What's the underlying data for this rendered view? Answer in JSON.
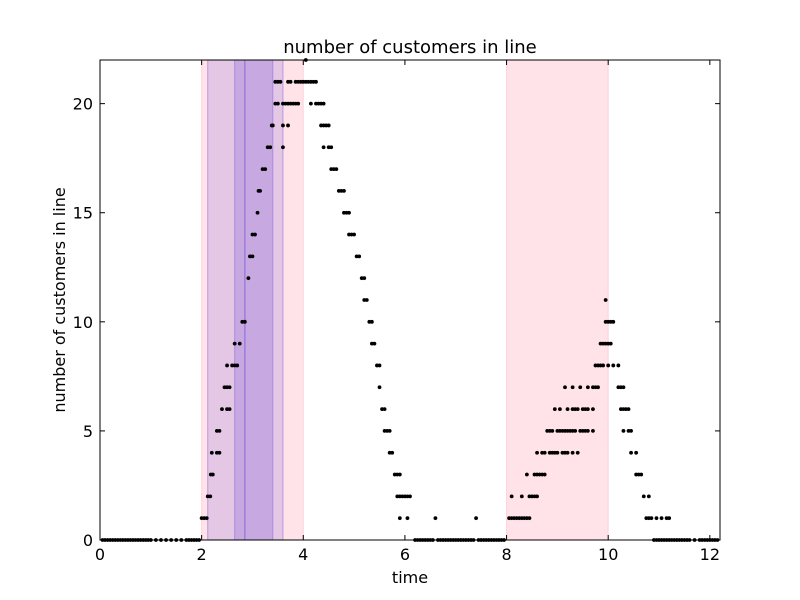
{
  "chart_data": {
    "type": "scatter",
    "title": "number of customers in line",
    "xlabel": "time",
    "ylabel": "number of customers in line",
    "xlim": [
      0,
      12.2
    ],
    "ylim": [
      0,
      22
    ],
    "xticks": [
      0,
      2,
      4,
      6,
      8,
      10,
      12
    ],
    "yticks": [
      0,
      5,
      10,
      15,
      20
    ],
    "grid": false,
    "legend": "none",
    "colors": {
      "points": "#000000",
      "band_pink": "#ffc0cb",
      "band_purple": "#9370db",
      "band_line": "#9370db"
    },
    "bands": [
      {
        "x0": 2.0,
        "x1": 4.0,
        "color": "pink"
      },
      {
        "x0": 8.0,
        "x1": 10.0,
        "color": "pink"
      },
      {
        "x0": 2.12,
        "x1": 3.6,
        "color": "purple",
        "opacity": 0.25
      },
      {
        "x0": 2.65,
        "x1": 3.4,
        "color": "purple",
        "opacity": 0.35
      }
    ],
    "vlines": [
      2.85
    ],
    "points": [
      [
        0.05,
        0
      ],
      [
        0.1,
        0
      ],
      [
        0.15,
        0
      ],
      [
        0.2,
        0
      ],
      [
        0.25,
        0
      ],
      [
        0.3,
        0
      ],
      [
        0.35,
        0
      ],
      [
        0.4,
        0
      ],
      [
        0.45,
        0
      ],
      [
        0.5,
        0
      ],
      [
        0.55,
        0
      ],
      [
        0.6,
        0
      ],
      [
        0.65,
        0
      ],
      [
        0.7,
        0
      ],
      [
        0.75,
        0
      ],
      [
        0.8,
        0
      ],
      [
        0.85,
        0
      ],
      [
        0.9,
        0
      ],
      [
        0.95,
        0
      ],
      [
        1.0,
        0
      ],
      [
        1.1,
        0
      ],
      [
        1.2,
        0
      ],
      [
        1.3,
        0
      ],
      [
        1.4,
        0
      ],
      [
        1.5,
        0
      ],
      [
        1.6,
        0
      ],
      [
        1.7,
        0
      ],
      [
        1.75,
        0
      ],
      [
        1.8,
        0
      ],
      [
        1.85,
        0
      ],
      [
        1.9,
        0
      ],
      [
        1.95,
        0
      ],
      [
        2.0,
        1
      ],
      [
        2.05,
        1
      ],
      [
        2.1,
        1
      ],
      [
        2.12,
        2
      ],
      [
        2.17,
        2
      ],
      [
        2.18,
        3
      ],
      [
        2.22,
        3
      ],
      [
        2.2,
        4
      ],
      [
        2.3,
        4
      ],
      [
        2.35,
        4
      ],
      [
        2.3,
        5
      ],
      [
        2.35,
        5
      ],
      [
        2.4,
        6
      ],
      [
        2.5,
        6
      ],
      [
        2.55,
        6
      ],
      [
        2.45,
        7
      ],
      [
        2.5,
        7
      ],
      [
        2.55,
        7
      ],
      [
        2.5,
        8
      ],
      [
        2.6,
        8
      ],
      [
        2.65,
        8
      ],
      [
        2.7,
        8
      ],
      [
        2.65,
        9
      ],
      [
        2.75,
        9
      ],
      [
        2.8,
        10
      ],
      [
        2.85,
        10
      ],
      [
        2.92,
        12
      ],
      [
        2.95,
        13
      ],
      [
        3.0,
        13
      ],
      [
        3.0,
        14
      ],
      [
        3.05,
        14
      ],
      [
        3.1,
        15
      ],
      [
        3.12,
        16
      ],
      [
        3.15,
        16
      ],
      [
        3.2,
        17
      ],
      [
        3.25,
        17
      ],
      [
        3.3,
        18
      ],
      [
        3.35,
        18
      ],
      [
        3.38,
        19
      ],
      [
        3.4,
        19
      ],
      [
        3.45,
        20
      ],
      [
        3.5,
        20
      ],
      [
        3.45,
        21
      ],
      [
        3.5,
        21
      ],
      [
        3.55,
        21
      ],
      [
        3.6,
        18
      ],
      [
        3.6,
        19
      ],
      [
        3.7,
        19
      ],
      [
        3.6,
        20
      ],
      [
        3.65,
        20
      ],
      [
        3.7,
        20
      ],
      [
        3.75,
        20
      ],
      [
        3.8,
        20
      ],
      [
        3.85,
        20
      ],
      [
        3.9,
        20
      ],
      [
        3.7,
        21
      ],
      [
        3.75,
        21
      ],
      [
        3.85,
        21
      ],
      [
        3.9,
        21
      ],
      [
        3.95,
        21
      ],
      [
        4.0,
        21
      ],
      [
        4.05,
        22
      ],
      [
        4.05,
        21
      ],
      [
        4.1,
        21
      ],
      [
        4.15,
        21
      ],
      [
        4.2,
        21
      ],
      [
        4.25,
        21
      ],
      [
        4.15,
        20
      ],
      [
        4.25,
        20
      ],
      [
        4.3,
        20
      ],
      [
        4.35,
        20
      ],
      [
        4.4,
        20
      ],
      [
        4.35,
        19
      ],
      [
        4.4,
        19
      ],
      [
        4.45,
        19
      ],
      [
        4.5,
        19
      ],
      [
        4.4,
        18
      ],
      [
        4.5,
        18
      ],
      [
        4.55,
        18
      ],
      [
        4.55,
        17
      ],
      [
        4.6,
        17
      ],
      [
        4.65,
        17
      ],
      [
        4.7,
        16
      ],
      [
        4.75,
        16
      ],
      [
        4.8,
        16
      ],
      [
        4.8,
        15
      ],
      [
        4.85,
        15
      ],
      [
        4.9,
        15
      ],
      [
        4.9,
        14
      ],
      [
        4.95,
        14
      ],
      [
        5.0,
        14
      ],
      [
        5.05,
        13
      ],
      [
        5.1,
        13
      ],
      [
        5.15,
        12
      ],
      [
        5.2,
        12
      ],
      [
        5.2,
        11
      ],
      [
        5.25,
        11
      ],
      [
        5.3,
        10
      ],
      [
        5.35,
        10
      ],
      [
        5.35,
        9
      ],
      [
        5.4,
        9
      ],
      [
        5.45,
        8
      ],
      [
        5.5,
        8
      ],
      [
        5.5,
        7
      ],
      [
        5.55,
        6
      ],
      [
        5.6,
        6
      ],
      [
        5.6,
        5
      ],
      [
        5.65,
        5
      ],
      [
        5.7,
        5
      ],
      [
        5.7,
        4
      ],
      [
        5.75,
        4
      ],
      [
        5.8,
        3
      ],
      [
        5.85,
        3
      ],
      [
        5.9,
        3
      ],
      [
        5.85,
        2
      ],
      [
        5.9,
        2
      ],
      [
        5.95,
        2
      ],
      [
        6.0,
        2
      ],
      [
        6.05,
        2
      ],
      [
        6.1,
        2
      ],
      [
        5.9,
        1
      ],
      [
        6.05,
        1
      ],
      [
        6.2,
        0
      ],
      [
        6.25,
        0
      ],
      [
        6.3,
        0
      ],
      [
        6.35,
        0
      ],
      [
        6.4,
        0
      ],
      [
        6.45,
        0
      ],
      [
        6.5,
        0
      ],
      [
        6.55,
        0
      ],
      [
        6.6,
        1
      ],
      [
        6.65,
        0
      ],
      [
        6.7,
        0
      ],
      [
        6.75,
        0
      ],
      [
        6.8,
        0
      ],
      [
        6.85,
        0
      ],
      [
        6.9,
        0
      ],
      [
        6.95,
        0
      ],
      [
        7.0,
        0
      ],
      [
        7.05,
        0
      ],
      [
        7.1,
        0
      ],
      [
        7.15,
        0
      ],
      [
        7.2,
        0
      ],
      [
        7.25,
        0
      ],
      [
        7.3,
        0
      ],
      [
        7.35,
        0
      ],
      [
        7.4,
        1
      ],
      [
        7.45,
        0
      ],
      [
        7.5,
        0
      ],
      [
        7.55,
        0
      ],
      [
        7.6,
        0
      ],
      [
        7.65,
        0
      ],
      [
        7.7,
        0
      ],
      [
        7.75,
        0
      ],
      [
        7.8,
        0
      ],
      [
        7.85,
        0
      ],
      [
        7.9,
        0
      ],
      [
        7.95,
        0
      ],
      [
        8.05,
        1
      ],
      [
        8.1,
        1
      ],
      [
        8.15,
        1
      ],
      [
        8.2,
        1
      ],
      [
        8.25,
        1
      ],
      [
        8.3,
        1
      ],
      [
        8.35,
        1
      ],
      [
        8.4,
        1
      ],
      [
        8.45,
        1
      ],
      [
        8.1,
        2
      ],
      [
        8.3,
        2
      ],
      [
        8.45,
        2
      ],
      [
        8.5,
        2
      ],
      [
        8.55,
        2
      ],
      [
        8.6,
        2
      ],
      [
        8.4,
        3
      ],
      [
        8.55,
        3
      ],
      [
        8.6,
        3
      ],
      [
        8.65,
        3
      ],
      [
        8.7,
        3
      ],
      [
        8.75,
        3
      ],
      [
        8.6,
        4
      ],
      [
        8.7,
        4
      ],
      [
        8.75,
        4
      ],
      [
        8.85,
        4
      ],
      [
        8.9,
        4
      ],
      [
        8.95,
        4
      ],
      [
        9.0,
        4
      ],
      [
        9.1,
        4
      ],
      [
        9.15,
        4
      ],
      [
        9.2,
        4
      ],
      [
        9.3,
        4
      ],
      [
        9.4,
        4
      ],
      [
        8.8,
        5
      ],
      [
        8.85,
        5
      ],
      [
        8.9,
        5
      ],
      [
        9.0,
        5
      ],
      [
        9.05,
        5
      ],
      [
        9.1,
        5
      ],
      [
        9.15,
        5
      ],
      [
        9.2,
        5
      ],
      [
        9.25,
        5
      ],
      [
        9.3,
        5
      ],
      [
        9.35,
        5
      ],
      [
        9.45,
        5
      ],
      [
        9.5,
        5
      ],
      [
        9.55,
        5
      ],
      [
        9.6,
        5
      ],
      [
        9.7,
        5
      ],
      [
        8.95,
        6
      ],
      [
        9.05,
        6
      ],
      [
        9.2,
        6
      ],
      [
        9.3,
        6
      ],
      [
        9.35,
        6
      ],
      [
        9.4,
        6
      ],
      [
        9.5,
        6
      ],
      [
        9.55,
        6
      ],
      [
        9.6,
        6
      ],
      [
        9.7,
        6
      ],
      [
        9.15,
        7
      ],
      [
        9.3,
        7
      ],
      [
        9.45,
        7
      ],
      [
        9.6,
        7
      ],
      [
        9.7,
        7
      ],
      [
        9.75,
        7
      ],
      [
        9.8,
        7
      ],
      [
        9.75,
        8
      ],
      [
        9.8,
        8
      ],
      [
        9.85,
        8
      ],
      [
        9.9,
        8
      ],
      [
        10.0,
        8
      ],
      [
        9.85,
        9
      ],
      [
        9.9,
        9
      ],
      [
        9.95,
        9
      ],
      [
        10.0,
        9
      ],
      [
        10.05,
        9
      ],
      [
        9.95,
        10
      ],
      [
        10.0,
        10
      ],
      [
        10.05,
        10
      ],
      [
        10.1,
        10
      ],
      [
        9.95,
        11
      ],
      [
        10.1,
        8
      ],
      [
        10.2,
        8
      ],
      [
        10.2,
        7
      ],
      [
        10.25,
        7
      ],
      [
        10.3,
        7
      ],
      [
        10.25,
        6
      ],
      [
        10.3,
        6
      ],
      [
        10.35,
        6
      ],
      [
        10.4,
        6
      ],
      [
        10.3,
        5
      ],
      [
        10.4,
        5
      ],
      [
        10.45,
        5
      ],
      [
        10.45,
        4
      ],
      [
        10.55,
        4
      ],
      [
        10.55,
        3
      ],
      [
        10.6,
        3
      ],
      [
        10.65,
        3
      ],
      [
        10.7,
        2
      ],
      [
        10.8,
        2
      ],
      [
        10.75,
        1
      ],
      [
        10.8,
        1
      ],
      [
        10.85,
        1
      ],
      [
        10.95,
        1
      ],
      [
        11.05,
        1
      ],
      [
        11.15,
        1
      ],
      [
        11.2,
        1
      ],
      [
        10.9,
        0
      ],
      [
        10.95,
        0
      ],
      [
        11.0,
        0
      ],
      [
        11.05,
        0
      ],
      [
        11.1,
        0
      ],
      [
        11.15,
        0
      ],
      [
        11.2,
        0
      ],
      [
        11.25,
        0
      ],
      [
        11.3,
        0
      ],
      [
        11.35,
        0
      ],
      [
        11.4,
        0
      ],
      [
        11.45,
        0
      ],
      [
        11.5,
        0
      ],
      [
        11.55,
        0
      ],
      [
        11.6,
        0
      ],
      [
        11.7,
        0
      ],
      [
        11.8,
        0
      ],
      [
        11.85,
        0
      ],
      [
        11.9,
        0
      ],
      [
        11.95,
        0
      ],
      [
        12.0,
        0
      ],
      [
        12.05,
        0
      ],
      [
        12.1,
        0
      ],
      [
        12.15,
        0
      ]
    ]
  }
}
